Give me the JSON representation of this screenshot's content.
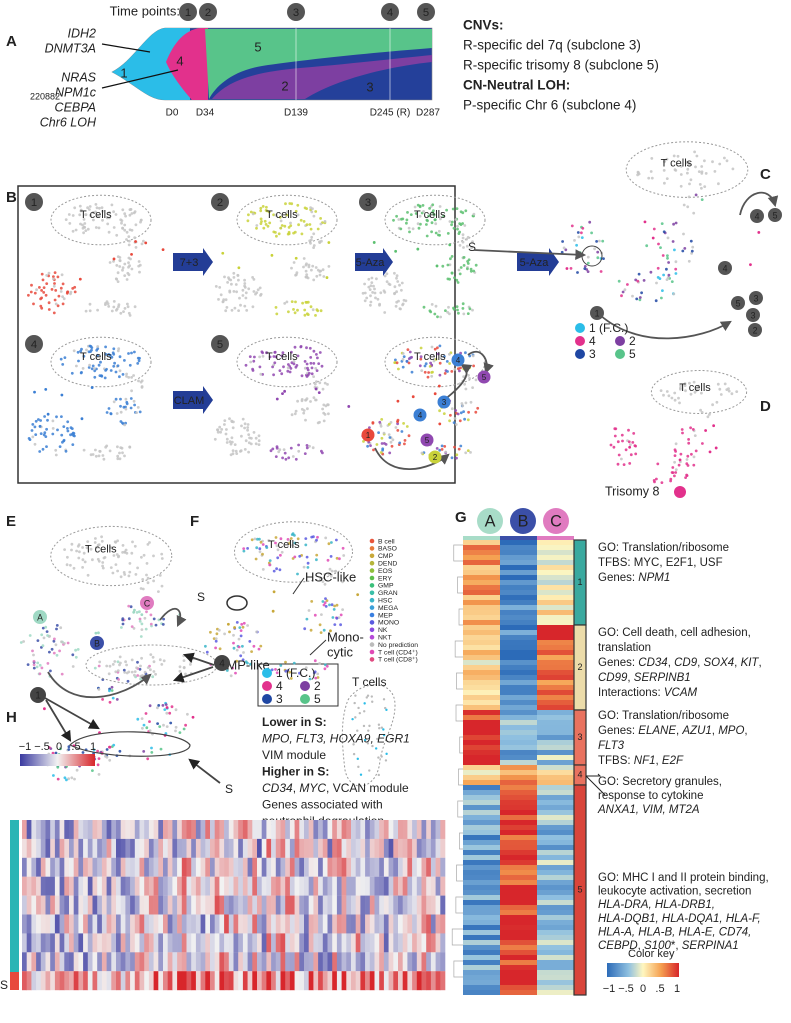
{
  "panel_a": {
    "label": "A",
    "time_points_label": "Time points:",
    "time_points": [
      "1",
      "2",
      "3",
      "4",
      "5"
    ],
    "genes_upper": [
      "IDH2",
      "DNMT3A"
    ],
    "genes_lower": [
      "NRAS",
      "NPM1c",
      "CEBPA",
      "Chr6 LOH"
    ],
    "sample_id": "220882",
    "clones": [
      "1",
      "4",
      "5",
      "2",
      "3"
    ],
    "days": [
      "D0",
      "D34",
      "D139",
      "D245 (R)",
      "D287"
    ]
  },
  "cnvs": {
    "title": "CNVs:",
    "lines": [
      "R-specific del 7q (subclone 3)",
      "R-specific trisomy 8 (subclone 5)"
    ],
    "loh_title": "CN-Neutral LOH:",
    "loh_lines": [
      "P-specific Chr 6 (subclone 4)"
    ]
  },
  "panel_b": {
    "label": "B",
    "time_points": [
      "1",
      "2",
      "3",
      "4",
      "5"
    ],
    "t_cells": [
      "T cells",
      "T cells",
      "T cells",
      "T cells",
      "T cells",
      "T cells"
    ],
    "treatments": [
      "7+3",
      "5-Aza",
      "5-Aza",
      "CLAM"
    ],
    "trajectory_nodes": [
      "1",
      "4",
      "5",
      "4",
      "3",
      "5",
      "2"
    ]
  },
  "panel_c": {
    "label": "C",
    "t_cells": "T cells",
    "s_label": "S",
    "trajectory_nodes": [
      "1",
      "4",
      "5",
      "4",
      "5",
      "3",
      "3",
      "2"
    ],
    "legend": [
      {
        "text": "1 (F.C.)",
        "color": "#2bbde8"
      },
      {
        "text": "4",
        "color": "#e2318c"
      },
      {
        "text": "2",
        "color": "#7d3fa1"
      },
      {
        "text": "3",
        "color": "#1f47a3"
      },
      {
        "text": "5",
        "color": "#58c48a"
      }
    ]
  },
  "panel_d": {
    "label": "D",
    "t_cells": "T cells",
    "legend": {
      "text": "Trisomy 8",
      "color": "#e2318c"
    }
  },
  "panel_e": {
    "label": "E",
    "t_cells": "T cells",
    "clusters": [
      {
        "text": "A",
        "color": "#9fd9c4"
      },
      {
        "text": "B",
        "color": "#3b4fa8"
      },
      {
        "text": "C",
        "color": "#e07bc0"
      }
    ]
  },
  "panel_f": {
    "label": "F",
    "t_cells": "T cells",
    "s_label": "S",
    "annotations": [
      "HSC-like",
      "CMP-like",
      "Mono-",
      "cytic"
    ],
    "legend": [
      {
        "text": "B cell",
        "color": "#e8553b"
      },
      {
        "text": "BASO",
        "color": "#e87a3b"
      },
      {
        "text": "CMP",
        "color": "#c8a83a"
      },
      {
        "text": "DEND",
        "color": "#b5b53a"
      },
      {
        "text": "EOS",
        "color": "#8fbf3a"
      },
      {
        "text": "ERY",
        "color": "#5cbf4a"
      },
      {
        "text": "GMP",
        "color": "#3abf7a"
      },
      {
        "text": "GRAN",
        "color": "#3abfa8"
      },
      {
        "text": "HSC",
        "color": "#3ab5c8"
      },
      {
        "text": "MEGA",
        "color": "#3a9fd8"
      },
      {
        "text": "MEP",
        "color": "#3a7fe0"
      },
      {
        "text": "MONO",
        "color": "#5a5ae0"
      },
      {
        "text": "NK",
        "color": "#8a4ae0"
      },
      {
        "text": "NKT",
        "color": "#b54ad8"
      },
      {
        "text": "No prediction",
        "color": "#bbbbbb"
      },
      {
        "text": "T cell (CD4⁺)",
        "color": "#e04ab5"
      },
      {
        "text": "T cell (CD8⁺)",
        "color": "#e04a80"
      }
    ]
  },
  "panel_g": {
    "label": "G",
    "columns": [
      {
        "text": "A",
        "color": "#a8dcc8"
      },
      {
        "text": "B",
        "color": "#3b4fa8"
      },
      {
        "text": "C",
        "color": "#e07bc0"
      }
    ],
    "clusters": [
      {
        "text": "1",
        "color": "#3aa99f"
      },
      {
        "text": "2",
        "color": "#ecdcaa"
      },
      {
        "text": "3",
        "color": "#e9725f"
      },
      {
        "text": "4",
        "color": "#e9725f"
      },
      {
        "text": "5",
        "color": "#d9453b"
      }
    ],
    "annotations": [
      {
        "lines": [
          [
            {
              "text": "GO: Translation/ribosome"
            }
          ],
          [
            {
              "text": "TFBS: MYC, E2F1, USF"
            }
          ],
          [
            {
              "text": "Genes: "
            },
            {
              "text": "NPM1",
              "italic": true
            }
          ]
        ]
      },
      {
        "lines": [
          [
            {
              "text": "GO: Cell death, cell adhesion,"
            }
          ],
          [
            {
              "text": "translation"
            }
          ],
          [
            {
              "text": "Genes: "
            },
            {
              "text": "CD34",
              "italic": true
            },
            {
              "text": ", "
            },
            {
              "text": "CD9",
              "italic": true
            },
            {
              "text": ", "
            },
            {
              "text": "SOX4",
              "italic": true
            },
            {
              "text": ", "
            },
            {
              "text": "KIT",
              "italic": true
            },
            {
              "text": ","
            }
          ],
          [
            {
              "text": "CD99",
              "italic": true
            },
            {
              "text": ", "
            },
            {
              "text": "SERPINB1",
              "italic": true
            }
          ],
          [
            {
              "text": "Interactions: "
            },
            {
              "text": "VCAM",
              "italic": true
            }
          ]
        ]
      },
      {
        "lines": [
          [
            {
              "text": "GO: Translation/ribosome"
            }
          ],
          [
            {
              "text": "Genes: "
            },
            {
              "text": "ELANE",
              "italic": true
            },
            {
              "text": ", "
            },
            {
              "text": "AZU1",
              "italic": true
            },
            {
              "text": ", "
            },
            {
              "text": "MPO",
              "italic": true
            },
            {
              "text": ","
            }
          ],
          [
            {
              "text": "FLT3",
              "italic": true
            }
          ],
          [
            {
              "text": "TFBS: "
            },
            {
              "text": "NF1",
              "italic": true
            },
            {
              "text": ", "
            },
            {
              "text": "E2F",
              "italic": true
            }
          ]
        ]
      },
      {
        "lines": [
          [
            {
              "text": "GO: Secretory granules,"
            }
          ],
          [
            {
              "text": "response to cytokine"
            }
          ],
          [
            {
              "text": "ANXA1, VIM, MT2A",
              "italic": true
            }
          ]
        ]
      },
      {
        "lines": [
          [
            {
              "text": "GO: MHC I and II protein binding,"
            }
          ],
          [
            {
              "text": "leukocyte activation, secretion"
            }
          ],
          [
            {
              "text": "HLA-DRA, HLA-DRB1,",
              "italic": true
            }
          ],
          [
            {
              "text": "HLA-DQB1, HLA-DQA1, HLA-F,",
              "italic": true
            }
          ],
          [
            {
              "text": "HLA-A, HLA-B, HLA-E, CD74,",
              "italic": true
            }
          ],
          [
            {
              "text": "CEBPD",
              "italic": true
            },
            {
              "text": ", "
            },
            {
              "text": "S100",
              "italic": true
            },
            {
              "text": "*, "
            },
            {
              "text": "SERPINA1",
              "italic": true
            }
          ]
        ]
      }
    ],
    "color_key": {
      "title": "Color key",
      "ticks": [
        "−1",
        "−.5",
        "0",
        ".5",
        "1"
      ]
    }
  },
  "panel_h": {
    "label": "H",
    "t_cells": "T cells",
    "nodes": [
      "1",
      "4"
    ],
    "s_label": "S",
    "heatmap_s_label": "S",
    "legend": [
      {
        "text": "1 (F.C.)",
        "color": "#2bbde8"
      },
      {
        "text": "4",
        "color": "#e2318c"
      },
      {
        "text": "2",
        "color": "#7d3fa1"
      },
      {
        "text": "3",
        "color": "#1f47a3"
      },
      {
        "text": "5",
        "color": "#58c48a"
      }
    ],
    "lines": [
      [
        {
          "text": "Lower in S:",
          "bold": true
        }
      ],
      [
        {
          "text": "MPO, FLT3, HOXA9, EGR1",
          "italic": true
        }
      ],
      [
        {
          "text": "VIM module"
        }
      ],
      [
        {
          "text": "Higher in S:",
          "bold": true
        }
      ],
      [
        {
          "text": "CD34",
          "italic": true
        },
        {
          "text": ", "
        },
        {
          "text": "MYC",
          "italic": true
        },
        {
          "text": ", VCAN module"
        }
      ],
      [
        {
          "text": "Genes associated with"
        }
      ],
      [
        {
          "text": "neutrophil degraulation"
        }
      ]
    ],
    "color_scale_ticks": [
      "−1",
      "−.5",
      "0",
      ".5",
      "1"
    ]
  }
}
